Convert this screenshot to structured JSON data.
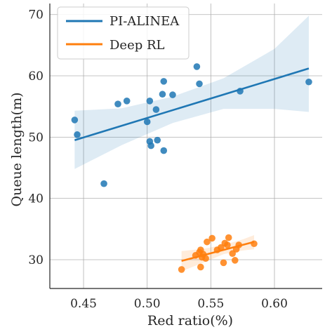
{
  "chart_data": {
    "type": "scatter",
    "xlabel": "Red ratio(%)",
    "ylabel": "Queue length(m)",
    "xlim": [
      0.4235,
      0.6375
    ],
    "ylim": [
      25.3,
      71.8
    ],
    "xticks": [
      0.45,
      0.5,
      0.55,
      0.6
    ],
    "xtick_labels": [
      "0.45",
      "0.50",
      "0.55",
      "0.60"
    ],
    "yticks": [
      30,
      40,
      50,
      60,
      70
    ],
    "ytick_labels": [
      "30",
      "40",
      "50",
      "60",
      "70"
    ],
    "grid": true,
    "legend_position": "top-left",
    "series": [
      {
        "name": "PI-ALINEA",
        "color": "#1f77b4",
        "points": [
          [
            0.443,
            52.8
          ],
          [
            0.445,
            50.4
          ],
          [
            0.466,
            42.4
          ],
          [
            0.477,
            55.4
          ],
          [
            0.484,
            55.9
          ],
          [
            0.5,
            52.5
          ],
          [
            0.502,
            49.3
          ],
          [
            0.502,
            55.9
          ],
          [
            0.503,
            48.6
          ],
          [
            0.507,
            54.5
          ],
          [
            0.508,
            49.5
          ],
          [
            0.512,
            57.0
          ],
          [
            0.513,
            59.1
          ],
          [
            0.513,
            47.8
          ],
          [
            0.52,
            56.9
          ],
          [
            0.539,
            61.5
          ],
          [
            0.541,
            58.7
          ],
          [
            0.573,
            57.5
          ],
          [
            0.627,
            59.0
          ]
        ],
        "fit": {
          "x0": 0.443,
          "x1": 0.627,
          "y0": 49.5,
          "y1": 61.2
        },
        "ci": {
          "x": [
            0.443,
            0.48,
            0.52,
            0.56,
            0.6,
            0.627
          ],
          "upper": [
            54.3,
            54.7,
            56.6,
            59.6,
            64.4,
            69.8
          ],
          "lower": [
            44.8,
            48.7,
            52.3,
            54.6,
            54.6,
            54.1
          ]
        }
      },
      {
        "name": "Deep RL",
        "color": "#ff7f0e",
        "points": [
          [
            0.527,
            28.4
          ],
          [
            0.538,
            30.7
          ],
          [
            0.541,
            31.2
          ],
          [
            0.542,
            28.8
          ],
          [
            0.542,
            31.6
          ],
          [
            0.543,
            30.4
          ],
          [
            0.544,
            30.9
          ],
          [
            0.546,
            30.2
          ],
          [
            0.547,
            32.9
          ],
          [
            0.551,
            33.5
          ],
          [
            0.555,
            31.6
          ],
          [
            0.558,
            32.0
          ],
          [
            0.56,
            29.5
          ],
          [
            0.561,
            32.7
          ],
          [
            0.563,
            32.4
          ],
          [
            0.564,
            33.6
          ],
          [
            0.567,
            31.0
          ],
          [
            0.569,
            29.9
          ],
          [
            0.57,
            31.7
          ],
          [
            0.572,
            32.4
          ],
          [
            0.584,
            32.6
          ]
        ],
        "fit": {
          "x0": 0.527,
          "x1": 0.584,
          "y0": 29.8,
          "y1": 32.9
        },
        "ci": {
          "x": [
            0.527,
            0.545,
            0.56,
            0.575,
            0.584
          ],
          "upper": [
            31.4,
            31.8,
            32.4,
            33.3,
            34.0
          ],
          "lower": [
            28.1,
            29.6,
            30.9,
            31.5,
            31.7
          ]
        }
      }
    ]
  }
}
